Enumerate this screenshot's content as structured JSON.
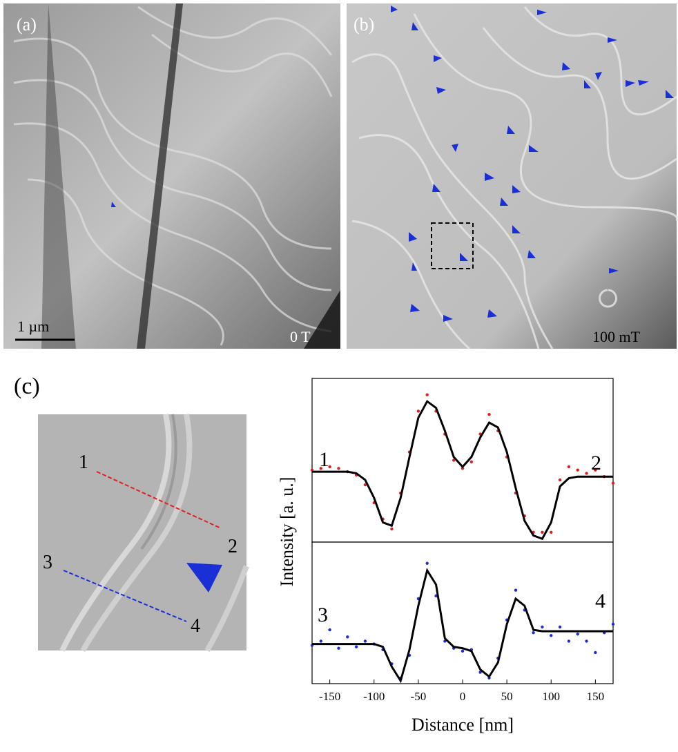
{
  "figure": {
    "panel_a": {
      "label": "(a)",
      "scale_bar": "1 µm",
      "field": "0 T"
    },
    "panel_b": {
      "label": "(b)",
      "field": "100 mT"
    },
    "panel_c": {
      "label": "(c)",
      "inset_markers": [
        "1",
        "2",
        "3",
        "4"
      ]
    }
  },
  "chart_data": [
    {
      "type": "line",
      "ylabel": "Intensity [a. u.]",
      "annotations": [
        "1",
        "2"
      ],
      "x": [
        -170,
        -160,
        -150,
        -140,
        -130,
        -120,
        -110,
        -100,
        -90,
        -80,
        -70,
        -60,
        -50,
        -40,
        -30,
        -20,
        -10,
        0,
        10,
        20,
        30,
        40,
        50,
        60,
        70,
        80,
        90,
        100,
        110,
        120,
        130,
        140,
        150,
        160,
        170
      ],
      "xlim": [
        -170,
        170
      ],
      "ylim": [
        0,
        1
      ],
      "series": [
        {
          "color": "#e02020",
          "style": "dots",
          "values": [
            0.44,
            0.45,
            0.46,
            0.45,
            0.43,
            0.41,
            0.35,
            0.24,
            0.14,
            0.08,
            0.3,
            0.55,
            0.8,
            0.9,
            0.8,
            0.66,
            0.5,
            0.45,
            0.49,
            0.66,
            0.78,
            0.68,
            0.52,
            0.3,
            0.16,
            0.06,
            0.06,
            0.06,
            0.38,
            0.46,
            0.44,
            0.42,
            0.44,
            0.4,
            0.36
          ]
        },
        {
          "color": "#000000",
          "style": "line",
          "values": [
            0.43,
            0.43,
            0.43,
            0.43,
            0.43,
            0.42,
            0.38,
            0.27,
            0.12,
            0.1,
            0.27,
            0.52,
            0.76,
            0.86,
            0.82,
            0.68,
            0.52,
            0.46,
            0.52,
            0.64,
            0.73,
            0.7,
            0.55,
            0.33,
            0.13,
            0.04,
            0.02,
            0.12,
            0.34,
            0.39,
            0.4,
            0.4,
            0.4,
            0.4,
            0.4
          ]
        }
      ]
    },
    {
      "type": "line",
      "xlabel": "Distance [nm]",
      "annotations": [
        "3",
        "4"
      ],
      "x": [
        -170,
        -160,
        -150,
        -140,
        -130,
        -120,
        -110,
        -100,
        -90,
        -80,
        -70,
        -60,
        -50,
        -40,
        -30,
        -20,
        -10,
        0,
        10,
        20,
        30,
        40,
        50,
        60,
        70,
        80,
        90,
        100,
        110,
        120,
        130,
        140,
        150,
        160,
        170
      ],
      "xlim": [
        -170,
        170
      ],
      "ylim": [
        0,
        1
      ],
      "xticks": [
        -150,
        -100,
        -50,
        0,
        50,
        100,
        150
      ],
      "series": [
        {
          "color": "#1a2fd6",
          "style": "dots",
          "values": [
            0.27,
            0.3,
            0.38,
            0.25,
            0.33,
            0.26,
            0.3,
            0.28,
            0.24,
            0.14,
            0.04,
            0.2,
            0.6,
            0.85,
            0.62,
            0.3,
            0.25,
            0.23,
            0.24,
            0.08,
            0.04,
            0.18,
            0.45,
            0.66,
            0.52,
            0.36,
            0.4,
            0.34,
            0.4,
            0.3,
            0.35,
            0.3,
            0.22,
            0.36,
            0.42
          ]
        },
        {
          "color": "#000000",
          "style": "line",
          "values": [
            0.28,
            0.28,
            0.28,
            0.28,
            0.28,
            0.28,
            0.28,
            0.28,
            0.26,
            0.12,
            0.02,
            0.24,
            0.55,
            0.8,
            0.7,
            0.32,
            0.26,
            0.25,
            0.23,
            0.1,
            0.05,
            0.15,
            0.42,
            0.6,
            0.55,
            0.38,
            0.37,
            0.37,
            0.37,
            0.37,
            0.37,
            0.37,
            0.37,
            0.37,
            0.37
          ]
        }
      ]
    }
  ]
}
